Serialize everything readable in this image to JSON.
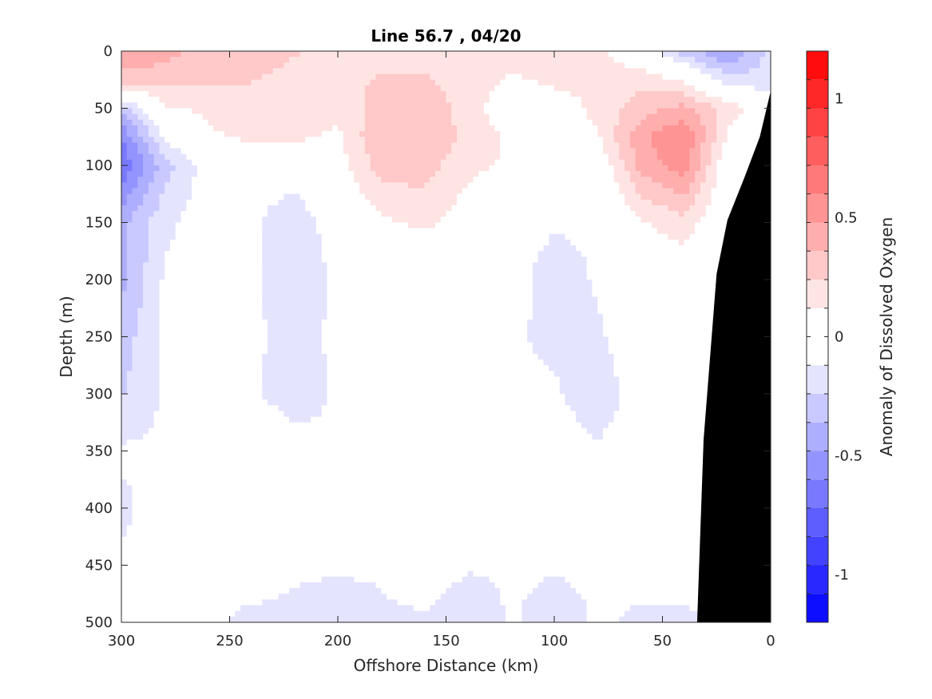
{
  "chart_data": {
    "type": "heatmap",
    "subtype": "filled-contour",
    "title": "Line 56.7 , 04/20",
    "xlabel": "Offshore Distance (km)",
    "ylabel": "Depth (m)",
    "colorbar_label": "Anomaly of Dissolved Oxygen",
    "xlim": [
      300,
      0
    ],
    "ylim": [
      0,
      500
    ],
    "x_reversed": true,
    "y_reversed": true,
    "xticks": [
      "300",
      "250",
      "200",
      "150",
      "100",
      "50",
      "0"
    ],
    "yticks": [
      "0",
      "50",
      "100",
      "150",
      "200",
      "250",
      "300",
      "350",
      "400",
      "450",
      "500"
    ],
    "colorbar_range": [
      -1.2,
      1.2
    ],
    "colorbar_levels": 20,
    "colorbar_ticks": [
      "1",
      "0.5",
      "0",
      "-0.5",
      "-1"
    ],
    "colormap": {
      "negative": "#0000ff",
      "zero": "#ffffff",
      "positive": "#ff0000"
    },
    "bathymetry_color": "#000000",
    "grid": false,
    "x": [
      300,
      280,
      260,
      240,
      220,
      200,
      180,
      160,
      140,
      120,
      100,
      80,
      60,
      40,
      20,
      0
    ],
    "depth": [
      0,
      25,
      50,
      75,
      100,
      150,
      200,
      250,
      300,
      350,
      400,
      450,
      500
    ],
    "z": [
      [
        0.5,
        0.4,
        0.3,
        0.3,
        0.25,
        0.2,
        0.2,
        0.2,
        0.2,
        0.2,
        0.2,
        0.15,
        0.0,
        -0.3,
        -0.5,
        -0.2
      ],
      [
        0.3,
        0.3,
        0.25,
        0.25,
        0.2,
        0.2,
        0.25,
        0.25,
        0.2,
        0.1,
        0.15,
        0.15,
        0.2,
        0.1,
        -0.2,
        -0.2
      ],
      [
        -0.3,
        0.1,
        0.15,
        0.15,
        0.15,
        0.15,
        0.3,
        0.3,
        0.2,
        0.0,
        0.05,
        0.15,
        0.3,
        0.4,
        0.2,
        0.0
      ],
      [
        -0.6,
        -0.1,
        0.1,
        0.15,
        0.15,
        0.1,
        0.35,
        0.35,
        0.2,
        0.1,
        0.1,
        0.1,
        0.45,
        0.6,
        0.1,
        -0.1
      ],
      [
        -0.7,
        -0.3,
        -0.05,
        -0.05,
        -0.05,
        0.05,
        0.3,
        0.3,
        0.15,
        0.1,
        0.1,
        0.0,
        0.4,
        0.55,
        0.0,
        -0.2
      ],
      [
        -0.4,
        -0.15,
        -0.05,
        -0.1,
        -0.2,
        -0.05,
        0.1,
        0.15,
        0.05,
        -0.05,
        -0.1,
        -0.1,
        0.1,
        0.2,
        -0.05,
        -0.1
      ],
      [
        -0.4,
        -0.1,
        -0.05,
        -0.1,
        -0.2,
        -0.1,
        -0.05,
        -0.05,
        0.0,
        -0.05,
        -0.2,
        -0.1,
        0.0,
        0.0,
        -0.05,
        -0.1
      ],
      [
        -0.3,
        -0.1,
        -0.05,
        -0.1,
        -0.15,
        -0.1,
        -0.05,
        -0.05,
        -0.05,
        -0.1,
        -0.15,
        -0.15,
        0.0,
        0.0,
        -0.05,
        -0.1
      ],
      [
        -0.25,
        -0.1,
        -0.05,
        -0.1,
        -0.2,
        -0.1,
        -0.05,
        0.0,
        -0.05,
        -0.1,
        -0.1,
        -0.2,
        -0.05,
        0.0,
        -0.05,
        -0.1
      ],
      [
        -0.1,
        -0.1,
        0.05,
        0.05,
        -0.05,
        -0.1,
        -0.05,
        0.0,
        -0.1,
        -0.1,
        -0.05,
        -0.1,
        -0.05,
        -0.05,
        -0.05,
        -0.1
      ],
      [
        -0.15,
        -0.05,
        0.1,
        0.1,
        0.0,
        -0.1,
        -0.1,
        -0.05,
        -0.1,
        -0.1,
        -0.1,
        -0.1,
        -0.1,
        -0.05,
        -0.05,
        -0.1
      ],
      [
        -0.1,
        -0.05,
        -0.1,
        -0.05,
        -0.1,
        -0.1,
        -0.1,
        0.0,
        -0.1,
        -0.1,
        -0.1,
        -0.1,
        -0.05,
        -0.05,
        -0.05,
        -0.1
      ],
      [
        -0.1,
        -0.1,
        -0.1,
        -0.15,
        -0.15,
        -0.2,
        -0.15,
        -0.15,
        -0.25,
        -0.1,
        -0.2,
        -0.1,
        -0.15,
        -0.15,
        -0.1,
        -0.1
      ]
    ],
    "bathymetry": [
      {
        "x": 34,
        "depth": 500
      },
      {
        "x": 31,
        "depth": 340
      },
      {
        "x": 25,
        "depth": 195
      },
      {
        "x": 20,
        "depth": 148
      },
      {
        "x": 12,
        "depth": 110
      },
      {
        "x": 5,
        "depth": 75
      },
      {
        "x": 0,
        "depth": 35
      }
    ]
  }
}
